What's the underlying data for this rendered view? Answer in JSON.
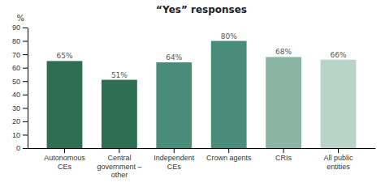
{
  "chart_data": {
    "type": "bar",
    "title": "“Yes” responses",
    "categories": [
      "Autonomous\nCEs",
      "Central\ngovernment –\nother",
      "Independent\nCEs",
      "Crown agents",
      "CRIs",
      "All public\nentities"
    ],
    "values": [
      65,
      51,
      64,
      80,
      68,
      66
    ],
    "value_labels": [
      "65%",
      "51%",
      "64%",
      "80%",
      "68%",
      "66%"
    ],
    "data_labels": true,
    "colors": [
      "#2e6e52",
      "#2e6e52",
      "#4a8c7a",
      "#4a8c7a",
      "#8ab5a3",
      "#b8d4c8"
    ],
    "ylabel": "%",
    "ylim": [
      0,
      90
    ],
    "yticks": [
      0,
      10,
      20,
      30,
      40,
      50,
      60,
      70,
      80,
      90
    ],
    "grid": false
  }
}
